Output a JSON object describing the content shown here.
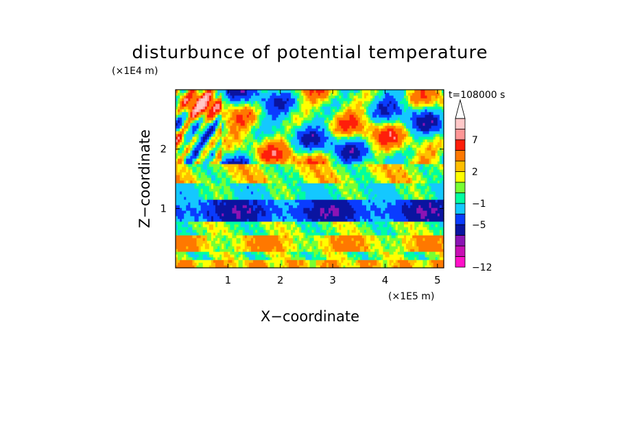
{
  "chart_data": {
    "type": "heatmap",
    "title": "disturbunce of potential temperature",
    "xlabel": "X−coordinate",
    "ylabel": "Z−coordinate",
    "x_unit": "(×1E5 m)",
    "y_unit": "(×1E4 m)",
    "time_label": "t=108000 s",
    "x_ticks": [
      1,
      2,
      3,
      4,
      5
    ],
    "y_ticks": [
      1,
      2
    ],
    "xlim": [
      0,
      5.12
    ],
    "ylim": [
      0,
      3.0
    ],
    "colorbar": {
      "levels": [
        -12,
        -11,
        -9,
        -7,
        -5,
        -3,
        -1,
        0,
        1,
        2,
        3,
        5,
        7,
        9,
        11
      ],
      "tick_values": [
        -12,
        -5,
        -1,
        2,
        7
      ],
      "tick_labels": [
        "−12",
        "−5",
        "−1",
        "2",
        "7"
      ],
      "colors": [
        "#ff10c8",
        "#c80fb4",
        "#8c14b4",
        "#0a14a0",
        "#0a3cff",
        "#14c8ff",
        "#00ffa0",
        "#78ff32",
        "#ffff00",
        "#ffbe00",
        "#ff7800",
        "#ff1e0a",
        "#ff9696",
        "#ffc8c8"
      ],
      "extend": "max"
    }
  }
}
